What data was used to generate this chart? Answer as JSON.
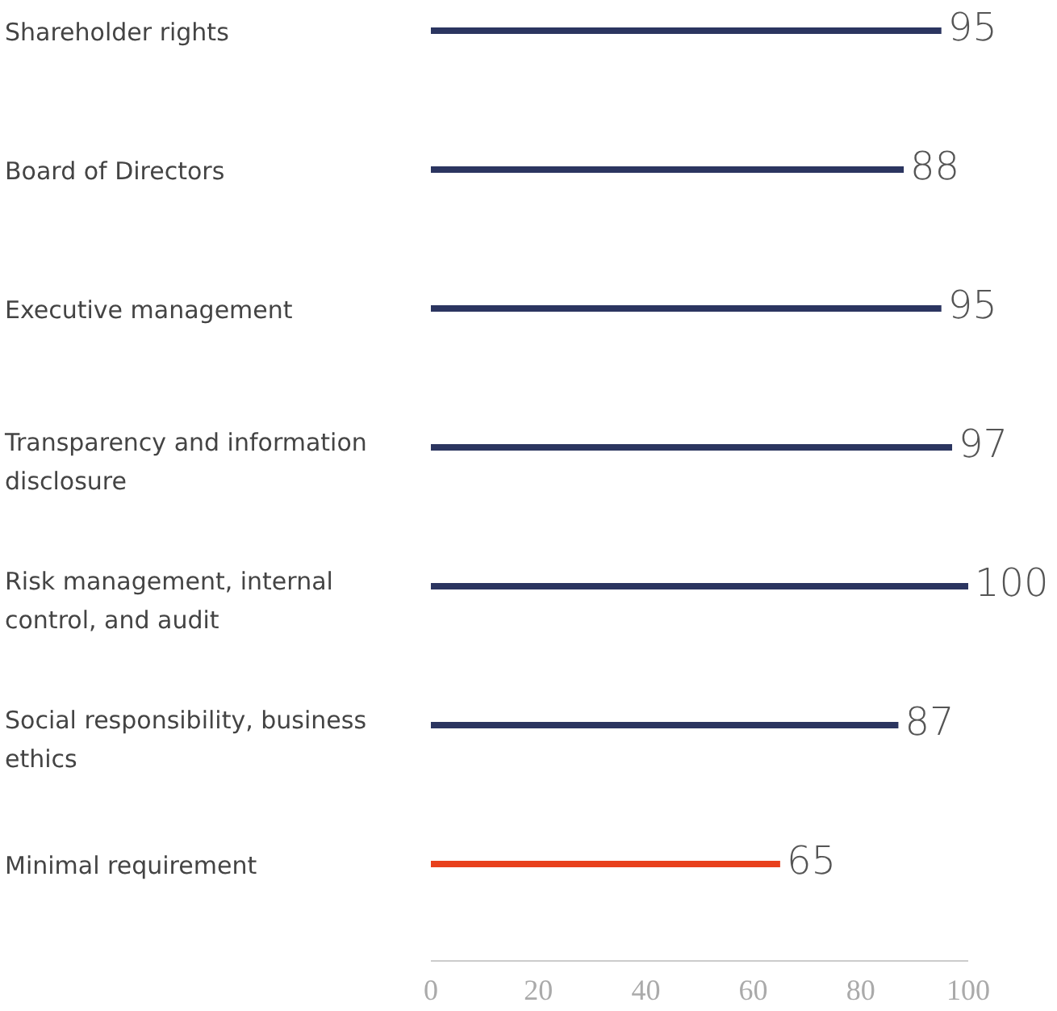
{
  "chart_data": {
    "type": "bar",
    "orientation": "horizontal",
    "categories": [
      "Shareholder rights",
      "Board of Directors",
      "Executive management",
      "Transparency and information disclosure",
      "Risk management, internal control, and audit",
      "Social responsibility, business ethics",
      "Minimal requirement"
    ],
    "values": [
      95,
      88,
      95,
      97,
      100,
      87,
      65
    ],
    "colors": [
      "#2b3560",
      "#2b3560",
      "#2b3560",
      "#2b3560",
      "#2b3560",
      "#2b3560",
      "#e8401c"
    ],
    "xlim": [
      0,
      100
    ],
    "xticks": [
      0,
      20,
      40,
      60,
      80,
      100
    ],
    "data_labels": true
  }
}
